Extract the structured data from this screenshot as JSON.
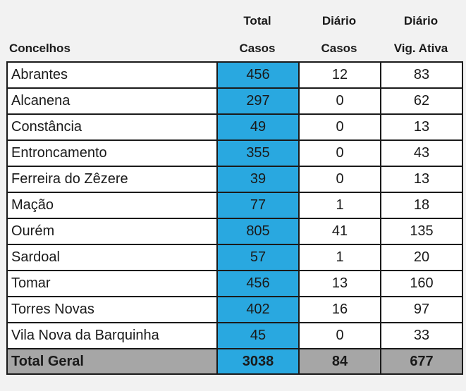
{
  "headers": {
    "concelhos": "Concelhos",
    "total_line1": "Total",
    "total_line2": "Casos",
    "diario_casos_line1": "Diário",
    "diario_casos_line2": "Casos",
    "diario_vig_line1": "Diário",
    "diario_vig_line2": "Vig. Ativa"
  },
  "rows": [
    {
      "name": "Abrantes",
      "total": "456",
      "diario": "12",
      "vig": "83"
    },
    {
      "name": "Alcanena",
      "total": "297",
      "diario": "0",
      "vig": "62"
    },
    {
      "name": "Constância",
      "total": "49",
      "diario": "0",
      "vig": "13"
    },
    {
      "name": "Entroncamento",
      "total": "355",
      "diario": "0",
      "vig": "43"
    },
    {
      "name": "Ferreira do Zêzere",
      "total": "39",
      "diario": "0",
      "vig": "13"
    },
    {
      "name": "Mação",
      "total": "77",
      "diario": "1",
      "vig": "18"
    },
    {
      "name": "Ourém",
      "total": "805",
      "diario": "41",
      "vig": "135"
    },
    {
      "name": "Sardoal",
      "total": "57",
      "diario": "1",
      "vig": "20"
    },
    {
      "name": "Tomar",
      "total": "456",
      "diario": "13",
      "vig": "160"
    },
    {
      "name": "Torres Novas",
      "total": "402",
      "diario": "16",
      "vig": "97"
    },
    {
      "name": "Vila Nova da Barquinha",
      "total": "45",
      "diario": "0",
      "vig": "33"
    }
  ],
  "summary": {
    "name": "Total Geral",
    "total": "3038",
    "diario": "84",
    "vig": "677"
  },
  "colors": {
    "total_column": "#29a8e0",
    "summary_row": "#a6a6a6",
    "background": "#f2f2f2"
  }
}
